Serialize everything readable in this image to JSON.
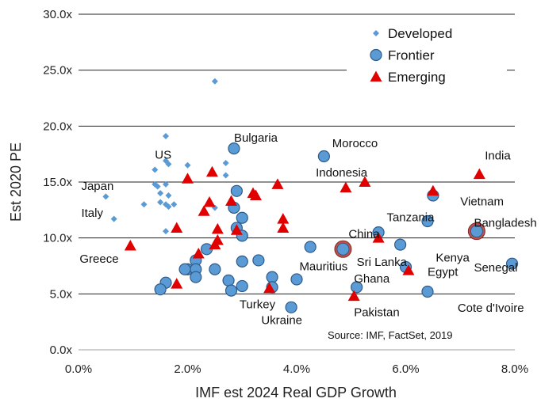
{
  "chart_data": {
    "type": "scatter",
    "xlabel": "IMF est 2024 Real GDP Growth",
    "ylabel": "Est 2020 PE",
    "xlim": [
      0,
      0.08
    ],
    "ylim": [
      0,
      30
    ],
    "x_ticks": [
      "0.0%",
      "2.0%",
      "4.0%",
      "6.0%",
      "8.0%"
    ],
    "y_ticks": [
      "0.0x",
      "5.0x",
      "10.0x",
      "15.0x",
      "20.0x",
      "25.0x",
      "30.0x"
    ],
    "grid": "horizontal",
    "legend_position": "top-right",
    "source": "Source: IMF, FactSet, 2019",
    "colors": {
      "developed": "#5B9BD5",
      "frontier": "#5B9BD5",
      "frontier_edge": "#2E5B8A",
      "emerging": "#E00000",
      "highlight_ring": "#C0504D",
      "grid": "#222222",
      "axis": "#bfbfbf"
    },
    "series": [
      {
        "name": "Developed",
        "marker": "diamond",
        "points": [
          [
            0.025,
            24.0
          ],
          [
            0.016,
            19.1
          ],
          [
            0.016,
            16.9
          ],
          [
            0.0165,
            16.6
          ],
          [
            0.02,
            16.5
          ],
          [
            0.027,
            16.7
          ],
          [
            0.014,
            16.1
          ],
          [
            0.027,
            15.6
          ],
          [
            0.014,
            14.8
          ],
          [
            0.0145,
            14.6
          ],
          [
            0.016,
            14.8
          ],
          [
            0.015,
            14.0
          ],
          [
            0.0165,
            13.8
          ],
          [
            0.015,
            13.2
          ],
          [
            0.016,
            13.0
          ],
          [
            0.012,
            13.0
          ],
          [
            0.0165,
            12.8
          ],
          [
            0.025,
            12.7
          ],
          [
            0.005,
            13.7
          ],
          [
            0.0065,
            11.7
          ],
          [
            0.016,
            10.6
          ],
          [
            0.029,
            11.0
          ],
          [
            0.0175,
            13.0
          ]
        ]
      },
      {
        "name": "Frontier",
        "marker": "circle",
        "points": [
          [
            0.0285,
            18.0
          ],
          [
            0.045,
            17.3
          ],
          [
            0.029,
            14.2
          ],
          [
            0.0285,
            12.7
          ],
          [
            0.03,
            11.8
          ],
          [
            0.029,
            10.9
          ],
          [
            0.03,
            10.2
          ],
          [
            0.065,
            13.8
          ],
          [
            0.064,
            11.5
          ],
          [
            0.055,
            10.5
          ],
          [
            0.059,
            9.4
          ],
          [
            0.0425,
            9.2
          ],
          [
            0.0235,
            9.0
          ],
          [
            0.0215,
            8.0
          ],
          [
            0.02,
            7.2
          ],
          [
            0.0215,
            7.2
          ],
          [
            0.0195,
            7.2
          ],
          [
            0.025,
            7.2
          ],
          [
            0.03,
            7.9
          ],
          [
            0.033,
            8.0
          ],
          [
            0.0355,
            6.5
          ],
          [
            0.04,
            6.3
          ],
          [
            0.0275,
            6.2
          ],
          [
            0.0215,
            6.5
          ],
          [
            0.016,
            6.0
          ],
          [
            0.015,
            5.4
          ],
          [
            0.03,
            5.7
          ],
          [
            0.028,
            5.3
          ],
          [
            0.0355,
            5.6
          ],
          [
            0.039,
            3.8
          ],
          [
            0.051,
            5.6
          ],
          [
            0.06,
            7.4
          ],
          [
            0.064,
            5.2
          ],
          [
            0.0795,
            7.7
          ],
          [
            0.0485,
            9.0
          ],
          [
            0.073,
            10.6
          ]
        ]
      },
      {
        "name": "Emerging",
        "marker": "triangle",
        "points": [
          [
            0.0245,
            15.9
          ],
          [
            0.02,
            15.3
          ],
          [
            0.028,
            13.3
          ],
          [
            0.032,
            14.0
          ],
          [
            0.0325,
            13.8
          ],
          [
            0.0365,
            14.8
          ],
          [
            0.049,
            14.5
          ],
          [
            0.0525,
            15.0
          ],
          [
            0.0735,
            15.7
          ],
          [
            0.065,
            14.2
          ],
          [
            0.024,
            13.2
          ],
          [
            0.023,
            12.4
          ],
          [
            0.0375,
            11.7
          ],
          [
            0.0375,
            10.9
          ],
          [
            0.018,
            10.9
          ],
          [
            0.0255,
            10.8
          ],
          [
            0.029,
            10.7
          ],
          [
            0.0255,
            9.8
          ],
          [
            0.025,
            9.4
          ],
          [
            0.055,
            10.0
          ],
          [
            0.0095,
            9.3
          ],
          [
            0.022,
            8.6
          ],
          [
            0.018,
            5.9
          ],
          [
            0.035,
            5.5
          ],
          [
            0.0505,
            4.8
          ],
          [
            0.0605,
            7.1
          ]
        ]
      }
    ],
    "highlighted_points": [
      {
        "label": "China",
        "x": 0.0485,
        "y": 9.0
      },
      {
        "label": "Bangladesh",
        "x": 0.073,
        "y": 10.6
      }
    ],
    "annotations": [
      {
        "text": "Bulgaria",
        "x": 0.0285,
        "y": 18.6
      },
      {
        "text": "US",
        "x": 0.014,
        "y": 17.1
      },
      {
        "text": "Japan",
        "x": 0.0005,
        "y": 14.3
      },
      {
        "text": "Italy",
        "x": 0.0005,
        "y": 11.9
      },
      {
        "text": "Greece",
        "x": 0.0002,
        "y": 7.8
      },
      {
        "text": "Morocco",
        "x": 0.0465,
        "y": 18.1
      },
      {
        "text": "Indonesia",
        "x": 0.0435,
        "y": 15.5
      },
      {
        "text": "India",
        "x": 0.0745,
        "y": 17.0
      },
      {
        "text": "Vietnam",
        "x": 0.07,
        "y": 12.9
      },
      {
        "text": "Tanzania",
        "x": 0.0565,
        "y": 11.5
      },
      {
        "text": "Bangladesh",
        "x": 0.0725,
        "y": 11.0
      },
      {
        "text": "China",
        "x": 0.0495,
        "y": 10.0
      },
      {
        "text": "Sri Lanka",
        "x": 0.051,
        "y": 7.5
      },
      {
        "text": "Kenya",
        "x": 0.0655,
        "y": 7.9
      },
      {
        "text": "Egypt",
        "x": 0.064,
        "y": 6.6
      },
      {
        "text": "Senegal",
        "x": 0.0725,
        "y": 7.0
      },
      {
        "text": "Mauritius",
        "x": 0.0405,
        "y": 7.1
      },
      {
        "text": "Ghana",
        "x": 0.0505,
        "y": 6.0
      },
      {
        "text": "Turkey",
        "x": 0.0295,
        "y": 3.7
      },
      {
        "text": "Ukraine",
        "x": 0.0335,
        "y": 2.3
      },
      {
        "text": "Pakistan",
        "x": 0.0505,
        "y": 3.0
      },
      {
        "text": "Cote d'Ivoire",
        "x": 0.0695,
        "y": 3.4
      }
    ]
  }
}
